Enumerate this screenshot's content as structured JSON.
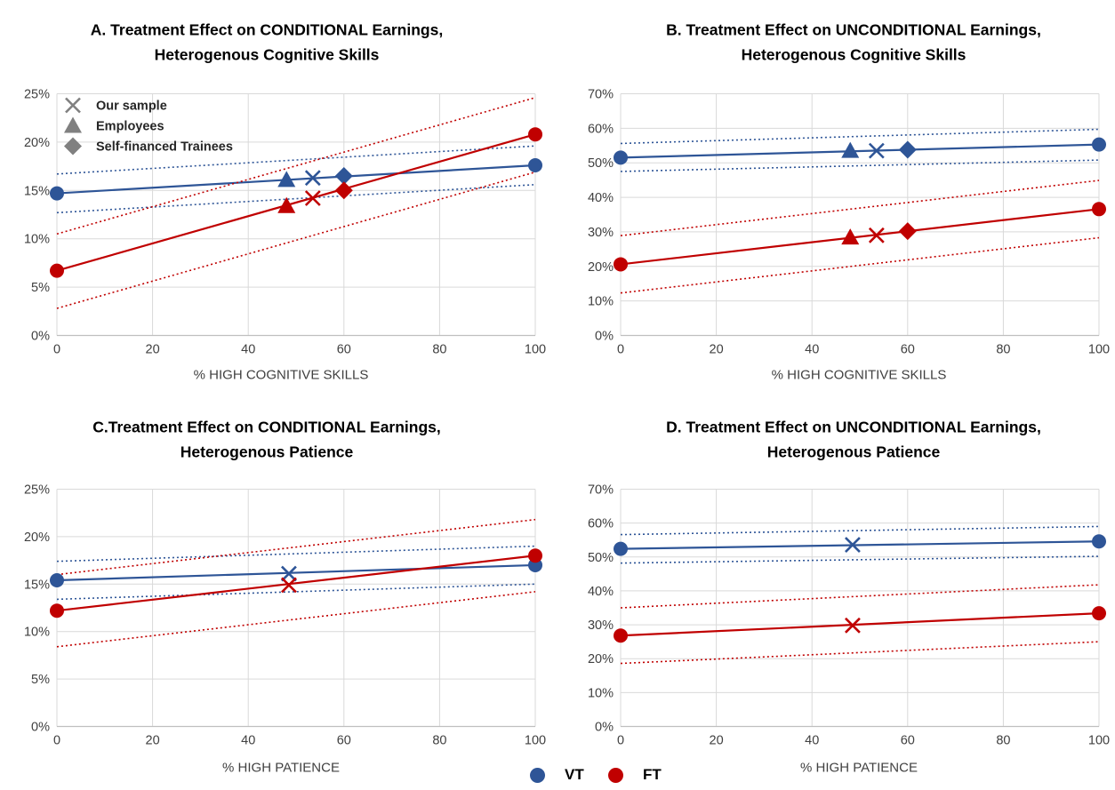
{
  "colors": {
    "vt": "#2e5597",
    "ft": "#c00000",
    "grid": "#d9d9d9",
    "axis": "#bfbfbf"
  },
  "chart_data": [
    {
      "id": "A",
      "type": "line",
      "title": [
        "A. Treatment Effect on CONDITIONAL Earnings,",
        "Heterogenous Cognitive Skills"
      ],
      "xlabel": "% HIGH COGNITIVE SKILLS",
      "ylabel": "",
      "xlim": [
        0,
        100
      ],
      "ylim": [
        0,
        0.25
      ],
      "x_ticks": [
        "0",
        "20",
        "40",
        "60",
        "80",
        "100"
      ],
      "y_ticks": [
        "0%",
        "5%",
        "10%",
        "15%",
        "20%",
        "25%"
      ],
      "grid": true,
      "series": [
        {
          "name": "VT",
          "color": "#2e5597",
          "x": [
            0,
            100
          ],
          "y": [
            0.147,
            0.176
          ],
          "ci_low": [
            0.127,
            0.156
          ],
          "ci_high": [
            0.167,
            0.196
          ]
        },
        {
          "name": "FT",
          "color": "#c00000",
          "x": [
            0,
            100
          ],
          "y": [
            0.067,
            0.208
          ],
          "ci_low": [
            0.028,
            0.169
          ],
          "ci_high": [
            0.105,
            0.246
          ]
        }
      ],
      "markers": [
        {
          "series": "VT",
          "shape": "triangle",
          "x": 48,
          "y": 0.161
        },
        {
          "series": "VT",
          "shape": "x",
          "x": 53.5,
          "y": 0.163
        },
        {
          "series": "VT",
          "shape": "diamond",
          "x": 60,
          "y": 0.165
        },
        {
          "series": "FT",
          "shape": "triangle",
          "x": 48,
          "y": 0.134
        },
        {
          "series": "FT",
          "shape": "x",
          "x": 53.5,
          "y": 0.142
        },
        {
          "series": "FT",
          "shape": "diamond",
          "x": 60,
          "y": 0.15
        }
      ],
      "marker_legend": [
        {
          "shape": "x",
          "label": "Our sample"
        },
        {
          "shape": "triangle",
          "label": "Employees"
        },
        {
          "shape": "diamond",
          "label": "Self-financed Trainees"
        }
      ]
    },
    {
      "id": "B",
      "type": "line",
      "title": [
        "B. Treatment Effect on UNCONDITIONAL Earnings,",
        "Heterogenous Cognitive Skills"
      ],
      "xlabel": "% HIGH COGNITIVE SKILLS",
      "ylabel": "",
      "xlim": [
        0,
        100
      ],
      "ylim": [
        0,
        0.7
      ],
      "x_ticks": [
        "0",
        "20",
        "40",
        "60",
        "80",
        "100"
      ],
      "y_ticks": [
        "0%",
        "10%",
        "20%",
        "30%",
        "40%",
        "50%",
        "60%",
        "70%"
      ],
      "grid": true,
      "series": [
        {
          "name": "VT",
          "color": "#2e5597",
          "x": [
            0,
            100
          ],
          "y": [
            0.515,
            0.553
          ],
          "ci_low": [
            0.475,
            0.508
          ],
          "ci_high": [
            0.556,
            0.597
          ]
        },
        {
          "name": "FT",
          "color": "#c00000",
          "x": [
            0,
            100
          ],
          "y": [
            0.206,
            0.366
          ],
          "ci_low": [
            0.123,
            0.283
          ],
          "ci_high": [
            0.289,
            0.449
          ]
        }
      ],
      "markers": [
        {
          "series": "VT",
          "shape": "triangle",
          "x": 48,
          "y": 0.535
        },
        {
          "series": "VT",
          "shape": "x",
          "x": 53.5,
          "y": 0.535
        },
        {
          "series": "VT",
          "shape": "diamond",
          "x": 60,
          "y": 0.538
        },
        {
          "series": "FT",
          "shape": "triangle",
          "x": 48,
          "y": 0.284
        },
        {
          "series": "FT",
          "shape": "x",
          "x": 53.5,
          "y": 0.29
        },
        {
          "series": "FT",
          "shape": "diamond",
          "x": 60,
          "y": 0.302
        }
      ],
      "marker_legend": []
    },
    {
      "id": "C",
      "type": "line",
      "title": [
        "C.Treatment Effect on CONDITIONAL Earnings,",
        "Heterogenous Patience"
      ],
      "xlabel": "% HIGH PATIENCE",
      "ylabel": "",
      "xlim": [
        0,
        100
      ],
      "ylim": [
        0,
        0.25
      ],
      "x_ticks": [
        "0",
        "20",
        "40",
        "60",
        "80",
        "100"
      ],
      "y_ticks": [
        "0%",
        "5%",
        "10%",
        "15%",
        "20%",
        "25%"
      ],
      "grid": true,
      "series": [
        {
          "name": "VT",
          "color": "#2e5597",
          "x": [
            0,
            100
          ],
          "y": [
            0.154,
            0.17
          ],
          "ci_low": [
            0.134,
            0.15
          ],
          "ci_high": [
            0.174,
            0.19
          ]
        },
        {
          "name": "FT",
          "color": "#c00000",
          "x": [
            0,
            100
          ],
          "y": [
            0.122,
            0.18
          ],
          "ci_low": [
            0.084,
            0.142
          ],
          "ci_high": [
            0.16,
            0.218
          ]
        }
      ],
      "markers": [
        {
          "series": "VT",
          "shape": "x",
          "x": 48.5,
          "y": 0.161
        },
        {
          "series": "FT",
          "shape": "x",
          "x": 48.5,
          "y": 0.149
        }
      ],
      "marker_legend": []
    },
    {
      "id": "D",
      "type": "line",
      "title": [
        "D. Treatment Effect on UNCONDITIONAL Earnings,",
        "Heterogenous Patience"
      ],
      "xlabel": "% HIGH PATIENCE",
      "ylabel": "",
      "xlim": [
        0,
        100
      ],
      "ylim": [
        0,
        0.7
      ],
      "x_ticks": [
        "0",
        "20",
        "40",
        "60",
        "80",
        "100"
      ],
      "y_ticks": [
        "0%",
        "10%",
        "20%",
        "30%",
        "40%",
        "50%",
        "60%",
        "70%"
      ],
      "grid": true,
      "series": [
        {
          "name": "VT",
          "color": "#2e5597",
          "x": [
            0,
            100
          ],
          "y": [
            0.524,
            0.546
          ],
          "ci_low": [
            0.482,
            0.502
          ],
          "ci_high": [
            0.566,
            0.59
          ]
        },
        {
          "name": "FT",
          "color": "#c00000",
          "x": [
            0,
            100
          ],
          "y": [
            0.268,
            0.334
          ],
          "ci_low": [
            0.186,
            0.25
          ],
          "ci_high": [
            0.35,
            0.418
          ]
        }
      ],
      "markers": [
        {
          "series": "VT",
          "shape": "x",
          "x": 48.5,
          "y": 0.536
        },
        {
          "series": "FT",
          "shape": "x",
          "x": 48.5,
          "y": 0.298
        }
      ],
      "marker_legend": []
    }
  ],
  "legend": [
    {
      "label": "VT",
      "color": "#2e5597"
    },
    {
      "label": "FT",
      "color": "#c00000"
    }
  ]
}
